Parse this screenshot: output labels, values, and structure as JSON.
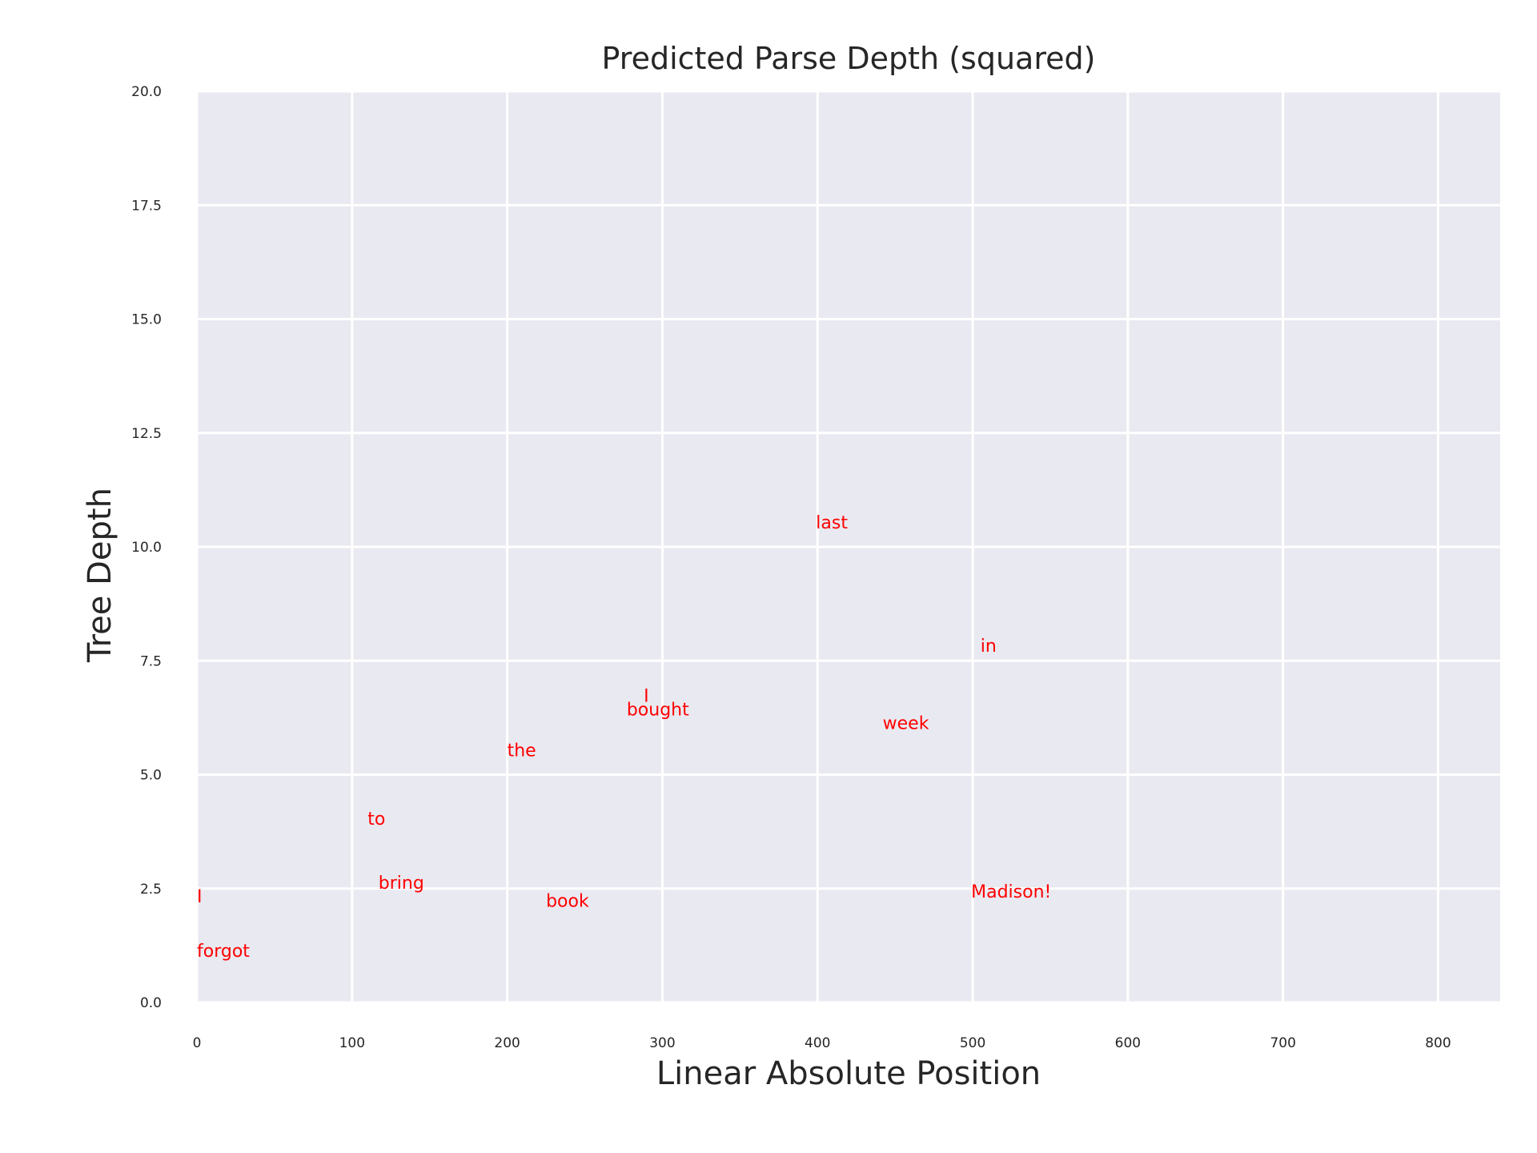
{
  "chart_data": {
    "type": "scatter",
    "title": "Predicted Parse Depth (squared)",
    "xlabel": "Linear Absolute Position",
    "ylabel": "Tree Depth",
    "xlim": [
      0,
      840
    ],
    "ylim": [
      0,
      20
    ],
    "xticks": [
      0,
      100,
      200,
      300,
      400,
      500,
      600,
      700,
      800
    ],
    "yticks": [
      0.0,
      2.5,
      5.0,
      7.5,
      10.0,
      12.5,
      15.0,
      17.5,
      20.0
    ],
    "xtick_labels": [
      "0",
      "100",
      "200",
      "300",
      "400",
      "500",
      "600",
      "700",
      "800"
    ],
    "ytick_labels": [
      "0.0",
      "2.5",
      "5.0",
      "7.5",
      "10.0",
      "12.5",
      "15.0",
      "17.5",
      "20.0"
    ],
    "grid": true,
    "label_color": "#ff0000",
    "plot_background": "#e9e9f1",
    "grid_color": "#ffffff",
    "points": [
      {
        "text": "I",
        "x": 0,
        "y": 2.2
      },
      {
        "text": "forgot",
        "x": 0,
        "y": 1.0
      },
      {
        "text": "to",
        "x": 110,
        "y": 3.9
      },
      {
        "text": "bring",
        "x": 117,
        "y": 2.5
      },
      {
        "text": "the",
        "x": 200,
        "y": 5.4
      },
      {
        "text": "book",
        "x": 225,
        "y": 2.1
      },
      {
        "text": "I",
        "x": 288,
        "y": 6.6
      },
      {
        "text": "bought",
        "x": 277,
        "y": 6.3
      },
      {
        "text": "last",
        "x": 399,
        "y": 10.4
      },
      {
        "text": "week",
        "x": 442,
        "y": 6.0
      },
      {
        "text": "in",
        "x": 505,
        "y": 7.7
      },
      {
        "text": "Madison!",
        "x": 499,
        "y": 2.3
      }
    ]
  }
}
